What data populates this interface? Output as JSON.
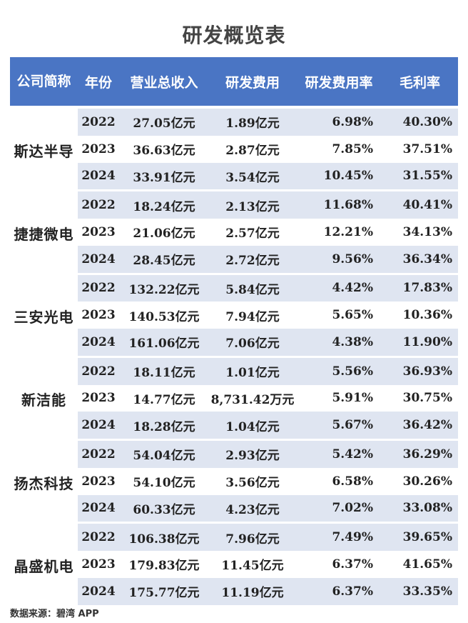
{
  "title": "研发概览表",
  "headers": [
    "公司简称",
    "年份",
    "营业总收入",
    "研发费用",
    "研发费用率",
    "毛利率"
  ],
  "companies": [
    {
      "name": "斯达半导",
      "rows": [
        {
          "year": "2022",
          "revenue": "27.05亿元",
          "rd": "1.89亿元",
          "rd_rate": "6.98%",
          "gross_margin": "40.30%"
        },
        {
          "year": "2023",
          "revenue": "36.63亿元",
          "rd": "2.87亿元",
          "rd_rate": "7.85%",
          "gross_margin": "37.51%"
        },
        {
          "year": "2024",
          "revenue": "33.91亿元",
          "rd": "3.54亿元",
          "rd_rate": "10.45%",
          "gross_margin": "31.55%"
        }
      ]
    },
    {
      "name": "捷捷微电",
      "rows": [
        {
          "year": "2022",
          "revenue": "18.24亿元",
          "rd": "2.13亿元",
          "rd_rate": "11.68%",
          "gross_margin": "40.41%"
        },
        {
          "year": "2023",
          "revenue": "21.06亿元",
          "rd": "2.57亿元",
          "rd_rate": "12.21%",
          "gross_margin": "34.13%"
        },
        {
          "year": "2024",
          "revenue": "28.45亿元",
          "rd": "2.72亿元",
          "rd_rate": "9.56%",
          "gross_margin": "36.34%"
        }
      ]
    },
    {
      "name": "三安光电",
      "rows": [
        {
          "year": "2022",
          "revenue": "132.22亿元",
          "rd": "5.84亿元",
          "rd_rate": "4.42%",
          "gross_margin": "17.83%"
        },
        {
          "year": "2023",
          "revenue": "140.53亿元",
          "rd": "7.94亿元",
          "rd_rate": "5.65%",
          "gross_margin": "10.36%"
        },
        {
          "year": "2024",
          "revenue": "161.06亿元",
          "rd": "7.06亿元",
          "rd_rate": "4.38%",
          "gross_margin": "11.90%"
        }
      ]
    },
    {
      "name": "新洁能",
      "rows": [
        {
          "year": "2022",
          "revenue": "18.11亿元",
          "rd": "1.01亿元",
          "rd_rate": "5.56%",
          "gross_margin": "36.93%"
        },
        {
          "year": "2023",
          "revenue": "14.77亿元",
          "rd": "8,731.42万元",
          "rd_rate": "5.91%",
          "gross_margin": "30.75%"
        },
        {
          "year": "2024",
          "revenue": "18.28亿元",
          "rd": "1.04亿元",
          "rd_rate": "5.67%",
          "gross_margin": "36.42%"
        }
      ]
    },
    {
      "name": "扬杰科技",
      "rows": [
        {
          "year": "2022",
          "revenue": "54.04亿元",
          "rd": "2.93亿元",
          "rd_rate": "5.42%",
          "gross_margin": "36.29%"
        },
        {
          "year": "2023",
          "revenue": "54.10亿元",
          "rd": "3.56亿元",
          "rd_rate": "6.58%",
          "gross_margin": "30.26%"
        },
        {
          "year": "2024",
          "revenue": "60.33亿元",
          "rd": "4.23亿元",
          "rd_rate": "7.02%",
          "gross_margin": "33.08%"
        }
      ]
    },
    {
      "name": "晶盛机电",
      "rows": [
        {
          "year": "2022",
          "revenue": "106.38亿元",
          "rd": "7.96亿元",
          "rd_rate": "7.49%",
          "gross_margin": "39.65%"
        },
        {
          "year": "2023",
          "revenue": "179.83亿元",
          "rd": "11.45亿元",
          "rd_rate": "6.37%",
          "gross_margin": "41.65%"
        },
        {
          "year": "2024",
          "revenue": "175.77亿元",
          "rd": "11.19亿元",
          "rd_rate": "6.37%",
          "gross_margin": "33.35%"
        }
      ]
    }
  ],
  "source": "数据来源：碧湾 APP",
  "colors": {
    "header_bg": "#4a75c4",
    "row_shade": "#dfe5f1",
    "row_plain": "#ffffff"
  }
}
